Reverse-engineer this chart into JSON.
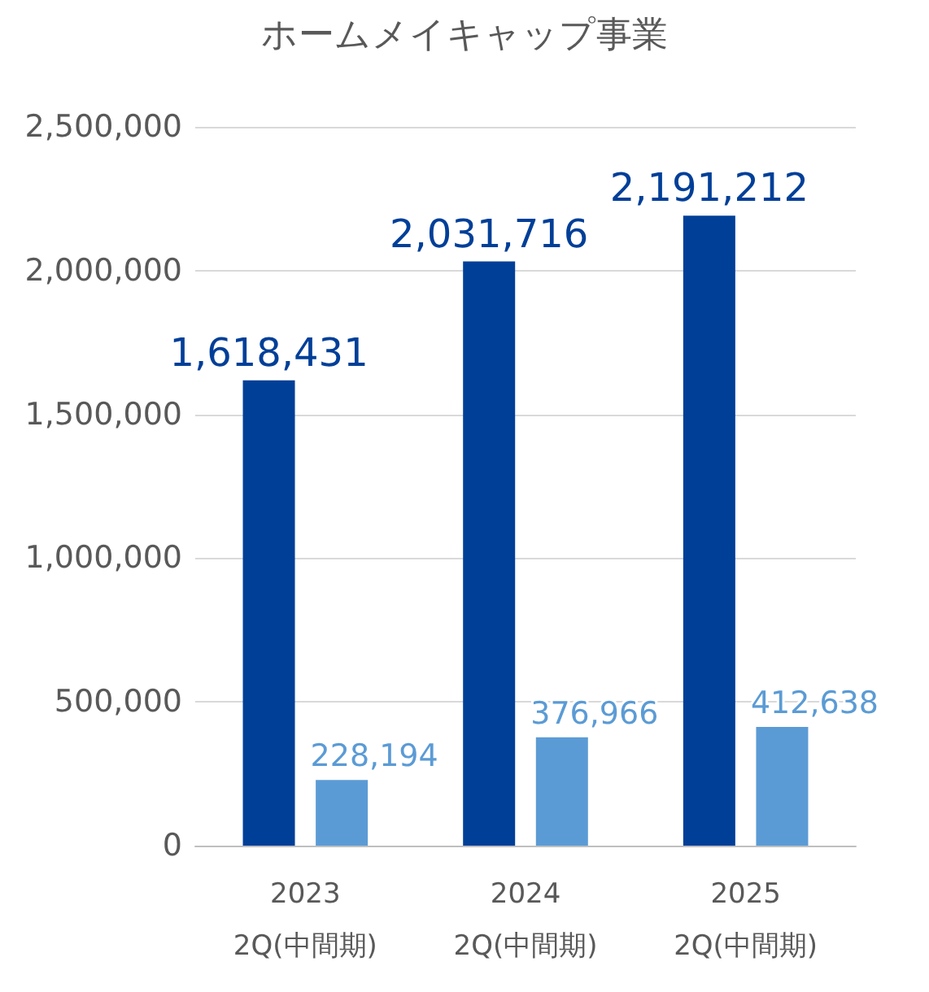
{
  "chart_data": {
    "type": "bar",
    "title": "ホームメイキャップ事業",
    "categories": [
      "2023\n2Q(中間期)",
      "2024\n2Q(中間期)",
      "2025\n2Q(中間期)"
    ],
    "series": [
      {
        "color": "#003f98",
        "values": [
          1618431,
          2031716,
          2191212
        ],
        "value_labels": [
          "1,618,431",
          "2,031,716",
          "2,191,212"
        ]
      },
      {
        "color": "#5b9bd5",
        "values": [
          228194,
          376966,
          412638
        ],
        "value_labels": [
          "228,194",
          "376,966",
          "412,638"
        ]
      }
    ],
    "ylim": [
      0,
      2500000
    ],
    "yticks": [
      {
        "value": 0,
        "label": "0"
      },
      {
        "value": 500000,
        "label": "500,000"
      },
      {
        "value": 1000000,
        "label": "1,000,000"
      },
      {
        "value": 1500000,
        "label": "1,500,000"
      },
      {
        "value": 2000000,
        "label": "2,000,000"
      },
      {
        "value": 2500000,
        "label": "2,500,000"
      }
    ],
    "grid": "y"
  }
}
